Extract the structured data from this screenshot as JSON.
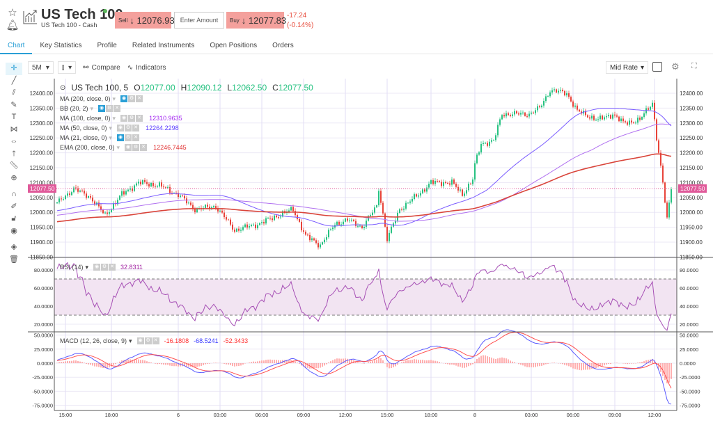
{
  "header": {
    "title": "US Tech 100",
    "subtitle": "US Tech 100 - Cash",
    "sell_label": "Sell",
    "sell_arrow": "↓",
    "sell_price": "12076.93",
    "amount_placeholder": "Enter Amount",
    "buy_label": "Buy",
    "buy_arrow": "↓",
    "buy_price": "12077.83",
    "change": "-17.24",
    "change_pct": "(-0.14%)"
  },
  "tabs": [
    {
      "label": "Chart",
      "active": true
    },
    {
      "label": "Key Statistics"
    },
    {
      "label": "Profile"
    },
    {
      "label": "Related Instruments"
    },
    {
      "label": "Open Positions"
    },
    {
      "label": "Orders"
    }
  ],
  "toolbar": {
    "interval": "5M",
    "compare": "Compare",
    "indicators": "Indicators",
    "price_type": "Mid Rate"
  },
  "legend": {
    "symbol": "US Tech 100, 5",
    "o_label": "O",
    "o": "12077.00",
    "h_label": "H",
    "h": "12090.12",
    "l_label": "L",
    "l": "12062.50",
    "c_label": "C",
    "c": "12077.50",
    "indicators": [
      {
        "label": "MA (200, close, 0)",
        "value": "",
        "on": true,
        "color": "#444"
      },
      {
        "label": "BB (20, 2)",
        "value": "",
        "on": true,
        "color": "#444"
      },
      {
        "label": "MA (100, close, 0)",
        "value": "12310.9635",
        "on": false,
        "color": "#a020f0"
      },
      {
        "label": "MA (50, close, 0)",
        "value": "12264.2298",
        "on": false,
        "color": "#5a3cff"
      },
      {
        "label": "MA (21, close, 0)",
        "value": "",
        "on": true,
        "color": "#444"
      },
      {
        "label": "EMA (200, close, 0)",
        "value": "12246.7445",
        "on": false,
        "color": "#e03030"
      }
    ],
    "rsi": {
      "label": "RSI (14)",
      "value": "32.8311"
    },
    "macd": {
      "label": "MACD (12, 26, close, 9)",
      "v1": "-16.1808",
      "v2": "-68.5241",
      "v3": "-52.3433"
    }
  },
  "current_price": "12077.50",
  "colors": {
    "up": "#26c281",
    "down": "#e8433a",
    "ema": "#d9443a",
    "ma100": "#b070f0",
    "ma50": "#7a5cff",
    "rsi": "#a64fb5",
    "macd": "#5a5aff",
    "signal": "#ff5050",
    "accent": "#2a9fd6"
  },
  "chart_data": {
    "type": "candlestick",
    "price_axis": {
      "ticks": [
        "12400.00",
        "12350.00",
        "12300.00",
        "12250.00",
        "12200.00",
        "12150.00",
        "12100.00",
        "12050.00",
        "12000.00",
        "11950.00",
        "11900.00",
        "11850.00"
      ],
      "range": [
        11850,
        12420
      ]
    },
    "rsi_axis": {
      "ticks": [
        "80.0000",
        "60.0000",
        "40.0000",
        "20.0000"
      ],
      "bands": [
        30,
        70
      ]
    },
    "macd_axis": {
      "ticks": [
        "50.0000",
        "25.0000",
        "0.0000",
        "-25.0000",
        "-50.0000",
        "-75.0000"
      ]
    },
    "x_ticks": [
      [
        "15:00",
        4
      ],
      [
        "18:00",
        26
      ],
      [
        "6",
        58
      ],
      [
        "03:00",
        78
      ],
      [
        "06:00",
        98
      ],
      [
        "09:00",
        118
      ],
      [
        "12:00",
        138
      ],
      [
        "15:00",
        158
      ],
      [
        "18:00",
        179
      ],
      [
        "8",
        200
      ],
      [
        "03:00",
        227
      ],
      [
        "06:00",
        247
      ],
      [
        "09:00",
        267
      ],
      [
        "12:00",
        286
      ]
    ],
    "price_keypoints": [
      [
        0,
        12030
      ],
      [
        8,
        12080
      ],
      [
        16,
        12050
      ],
      [
        23,
        11990
      ],
      [
        31,
        12060
      ],
      [
        39,
        12100
      ],
      [
        49,
        12090
      ],
      [
        58,
        12060
      ],
      [
        66,
        12010
      ],
      [
        76,
        12020
      ],
      [
        85,
        11940
      ],
      [
        96,
        11960
      ],
      [
        106,
        11990
      ],
      [
        113,
        12010
      ],
      [
        119,
        11920
      ],
      [
        126,
        11890
      ],
      [
        133,
        11960
      ],
      [
        139,
        11975
      ],
      [
        146,
        11950
      ],
      [
        153,
        12020
      ],
      [
        154,
        12080
      ],
      [
        158,
        11910
      ],
      [
        164,
        12010
      ],
      [
        173,
        12060
      ],
      [
        179,
        12100
      ],
      [
        189,
        12100
      ],
      [
        194,
        12060
      ],
      [
        199,
        12110
      ],
      [
        200,
        12160
      ],
      [
        203,
        12230
      ],
      [
        209,
        12240
      ],
      [
        213,
        12330
      ],
      [
        219,
        12330
      ],
      [
        226,
        12330
      ],
      [
        231,
        12350
      ],
      [
        236,
        12410
      ],
      [
        244,
        12400
      ],
      [
        249,
        12340
      ],
      [
        259,
        12310
      ],
      [
        266,
        12330
      ],
      [
        271,
        12300
      ],
      [
        279,
        12310
      ],
      [
        285,
        12370
      ],
      [
        287,
        12250
      ],
      [
        289,
        12150
      ],
      [
        292,
        11980
      ],
      [
        294,
        12077.5
      ]
    ]
  }
}
